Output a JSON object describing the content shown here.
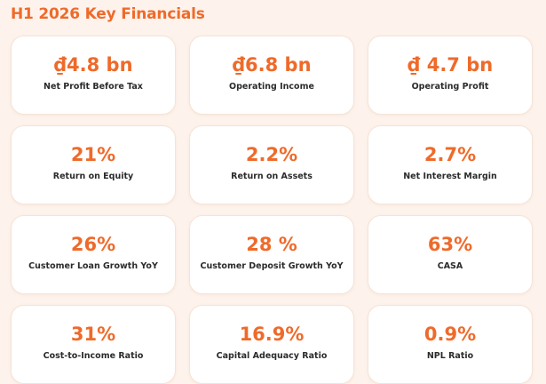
{
  "header": {
    "title": "H1 2026 Key Financials"
  },
  "cards": [
    {
      "value": "₫4.8 bn",
      "label": "Net Profit Before Tax"
    },
    {
      "value": "₫6.8 bn",
      "label": "Operating Income"
    },
    {
      "value": "₫ 4.7 bn",
      "label": "Operating Profit"
    },
    {
      "value": "21%",
      "label": "Return on Equity"
    },
    {
      "value": "2.2%",
      "label": "Return on Assets"
    },
    {
      "value": "2.7%",
      "label": "Net Interest Margin"
    },
    {
      "value": "26%",
      "label": "Customer Loan Growth YoY"
    },
    {
      "value": "28 %",
      "label": "Customer Deposit Growth YoY"
    },
    {
      "value": "63%",
      "label": "CASA"
    },
    {
      "value": "31%",
      "label": "Cost-to-Income Ratio"
    },
    {
      "value": "16.9%",
      "label": "Capital Adequacy Ratio"
    },
    {
      "value": "0.9%",
      "label": "NPL Ratio"
    }
  ],
  "colors": {
    "accent": "#ef6a2a",
    "background": "#fdf3ec",
    "card": "#ffffff",
    "label": "#2b2b2b"
  }
}
